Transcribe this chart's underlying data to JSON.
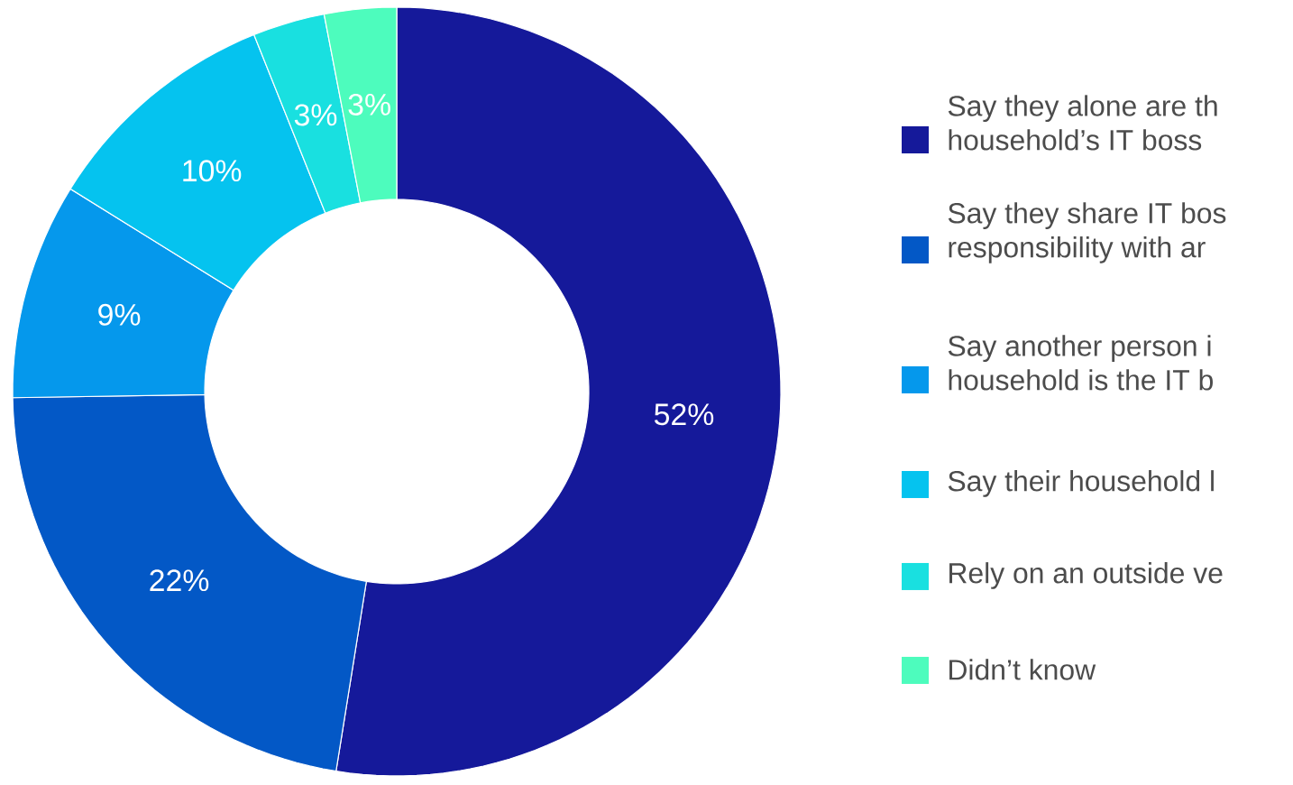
{
  "chart_data": {
    "type": "donut",
    "categories": [
      "Say they alone are th household’s IT boss",
      "Say they share IT bos responsibility with ar",
      "Say another person i household is the IT b",
      "Say their household l",
      "Rely on an outside ve",
      "Didn’t know"
    ],
    "values": [
      52,
      22,
      9,
      10,
      3,
      3
    ],
    "value_labels": [
      "52%",
      "22%",
      "9%",
      "10%",
      "3%",
      "3%"
    ],
    "colors": [
      "#15199a",
      "#0358c6",
      "#0598ec",
      "#05c3ef",
      "#19e0e0",
      "#4dfcbd"
    ],
    "legend": "right"
  }
}
